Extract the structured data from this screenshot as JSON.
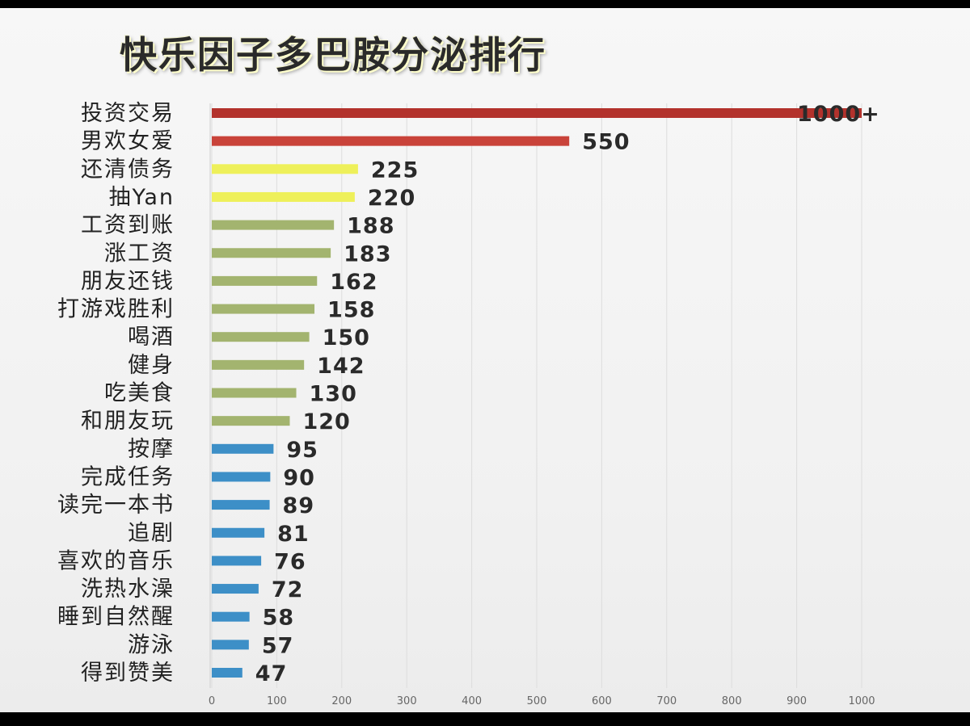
{
  "chart_data": {
    "type": "bar",
    "orientation": "horizontal",
    "title": "快乐因子多巴胺分泌排行",
    "categories": [
      "投资交易",
      "男欢女爱",
      "还清债务",
      "抽Yan",
      "工资到账",
      "涨工资",
      "朋友还钱",
      "打游戏胜利",
      "喝酒",
      "健身",
      "吃美食",
      "和朋友玩",
      "按摩",
      "完成任务",
      "读完一本书",
      "追剧",
      "喜欢的音乐",
      "洗热水澡",
      "睡到自然醒",
      "游泳",
      "得到赞美"
    ],
    "values": [
      1000,
      550,
      225,
      220,
      188,
      183,
      162,
      158,
      150,
      142,
      130,
      120,
      95,
      90,
      89,
      81,
      76,
      72,
      58,
      57,
      47
    ],
    "value_labels": [
      "1000+",
      "550",
      "225",
      "220",
      "188",
      "183",
      "162",
      "158",
      "150",
      "142",
      "130",
      "120",
      "95",
      "90",
      "89",
      "81",
      "76",
      "72",
      "58",
      "57",
      "47"
    ],
    "bar_colors": [
      "#b3322c",
      "#c9433a",
      "#eef05a",
      "#eef05a",
      "#a3b46f",
      "#a3b46f",
      "#a3b46f",
      "#a3b46f",
      "#a3b46f",
      "#a3b46f",
      "#a3b46f",
      "#a3b46f",
      "#3d8fc7",
      "#3d8fc7",
      "#3d8fc7",
      "#3d8fc7",
      "#3d8fc7",
      "#3d8fc7",
      "#3d8fc7",
      "#3d8fc7",
      "#3d8fc7"
    ],
    "xlim": [
      0,
      1000
    ],
    "xticks": [
      0,
      100,
      200,
      300,
      400,
      500,
      600,
      700,
      800,
      900,
      1000
    ],
    "xtick_labels": [
      "0",
      "100",
      "200",
      "300",
      "400",
      "500",
      "600",
      "700",
      "800",
      "900",
      "1000"
    ],
    "grid": true,
    "xlabel": "",
    "ylabel": ""
  }
}
